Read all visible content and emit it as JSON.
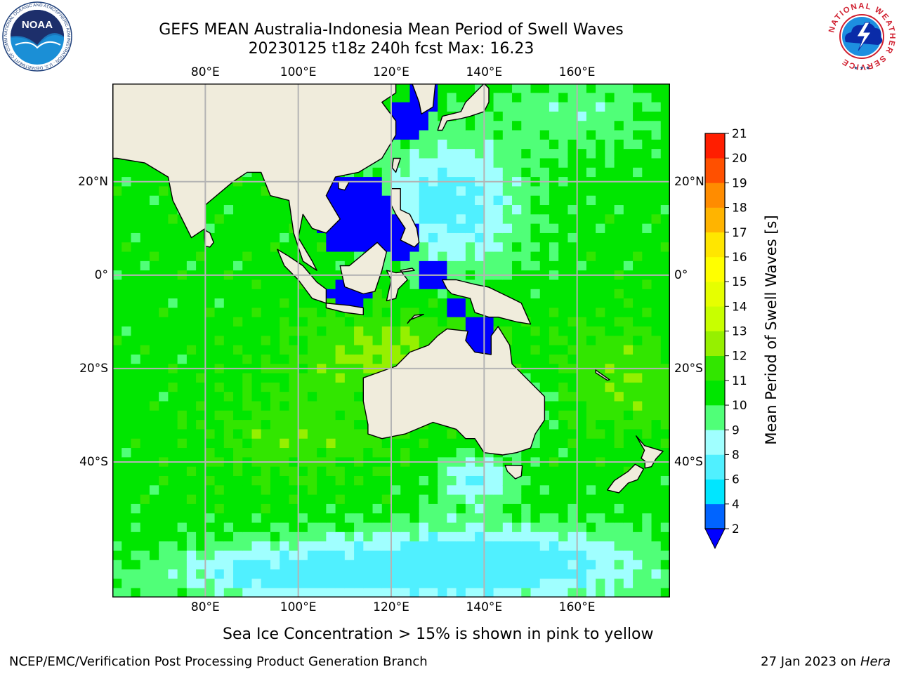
{
  "header": {
    "title_line1": "GEFS MEAN Australia-Indonesia Mean Period of Swell Waves",
    "title_line2": "20230125 t18z 240h fcst   Max: 16.23"
  },
  "logos": {
    "left": "NOAA",
    "right_ring_text": "NATIONAL WEATHER SERVICE",
    "noaa_ring_text": "NATIONAL OCEANIC AND ATMOSPHERIC ADMINISTRATION · U.S. DEPARTMENT OF COMMERCE"
  },
  "map": {
    "lon_range": [
      60,
      180
    ],
    "lat_range": [
      -69,
      41
    ],
    "lon_ticks": [
      "80°E",
      "100°E",
      "120°E",
      "140°E",
      "160°E"
    ],
    "lon_tick_values": [
      80,
      100,
      120,
      140,
      160
    ],
    "lat_ticks": [
      "20°N",
      "0°",
      "20°S",
      "40°S"
    ],
    "lat_tick_values": [
      20,
      0,
      -20,
      -40
    ],
    "grid": true,
    "land_color": "#f0ecdc",
    "grid_color": "#b4b4b4"
  },
  "colorbar": {
    "label": "Mean Period of Swell Waves [s]",
    "levels": [
      "2",
      "4",
      "6",
      "8",
      "9",
      "10",
      "11",
      "12",
      "13",
      "14",
      "15",
      "16",
      "17",
      "18",
      "19",
      "20",
      "21"
    ],
    "colors": [
      "#0064ff",
      "#00e6ff",
      "#50f0ff",
      "#a0ffff",
      "#50ff78",
      "#00e600",
      "#32e600",
      "#96f000",
      "#c8ff00",
      "#e6ff00",
      "#ffff00",
      "#ffe600",
      "#ffb400",
      "#ff8c00",
      "#ff5000",
      "#ff1e00"
    ],
    "under_color": "#0000ff",
    "extend": "min"
  },
  "note": "Sea Ice Concentration > 15% is shown in pink to yellow",
  "footer": {
    "left": "NCEP/EMC/Verification Post Processing Product Generation Branch",
    "right_date": "27 Jan 2023 on",
    "right_machine": "Hera"
  }
}
